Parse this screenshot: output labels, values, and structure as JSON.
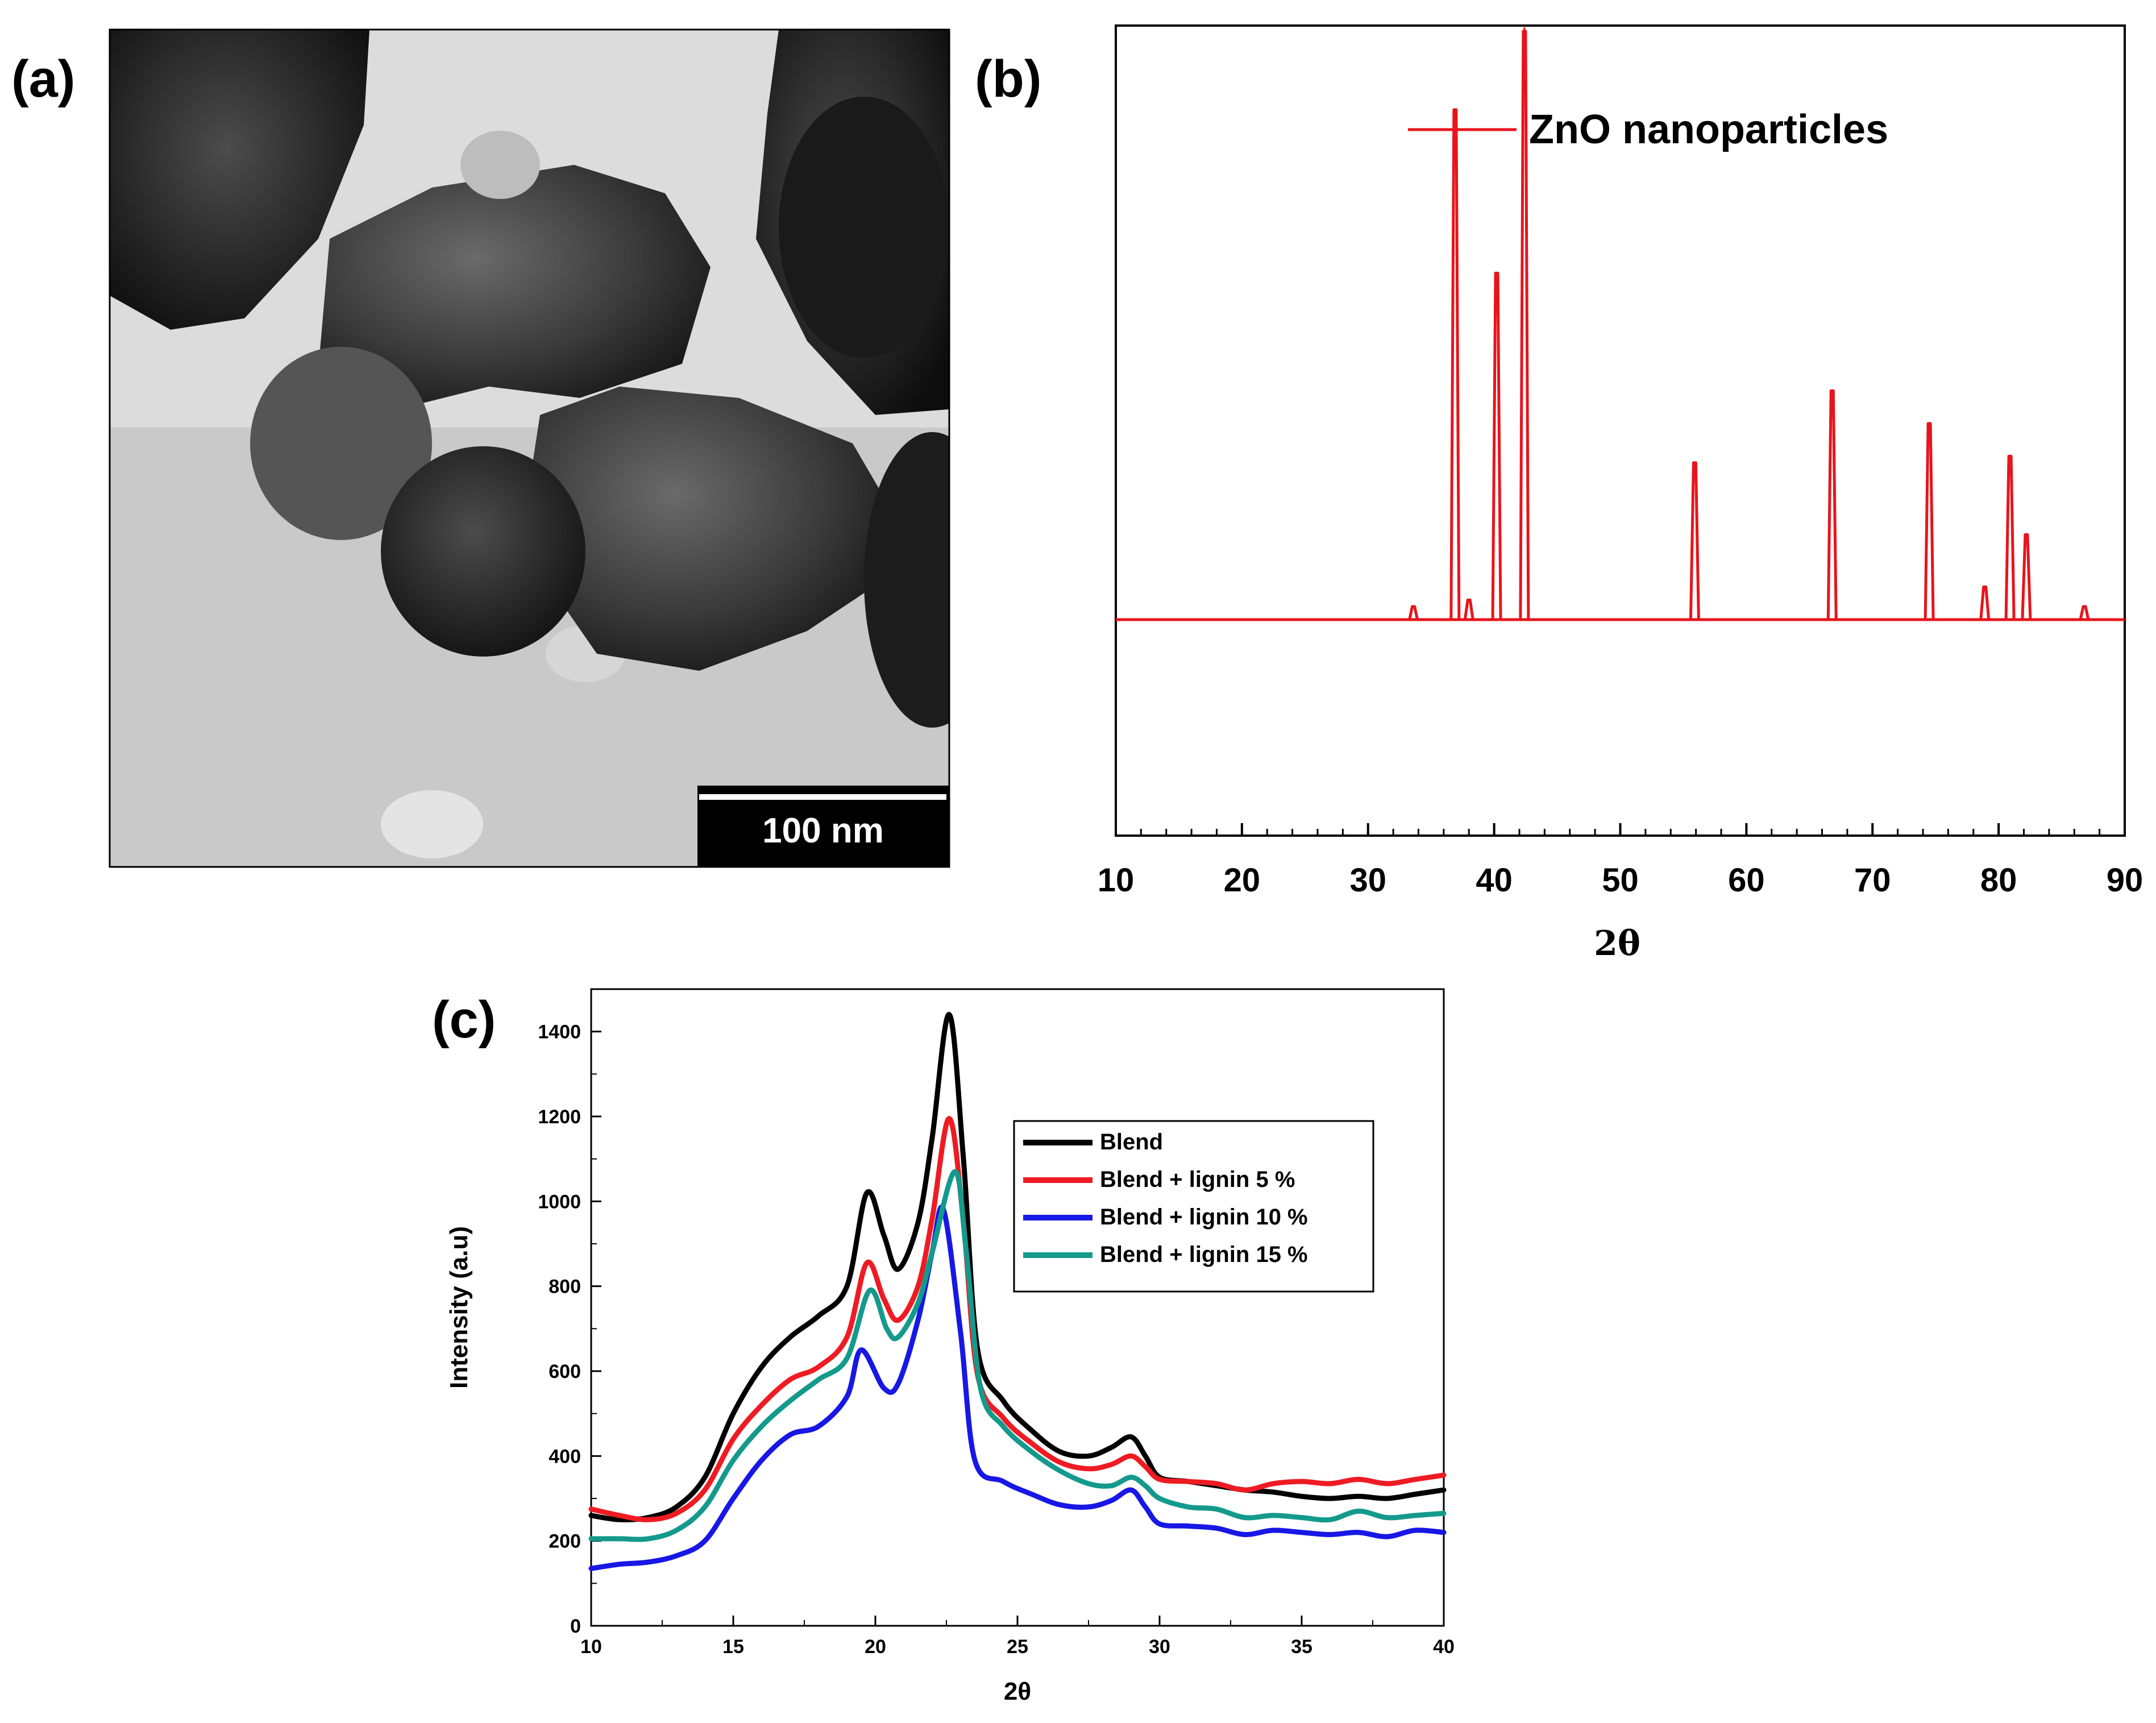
{
  "panels": {
    "a": "(a)",
    "b": "(b)",
    "c": "(c)"
  },
  "tem": {
    "scale_bar_label": "100 nm"
  },
  "chart_data": [
    {
      "panel": "b",
      "type": "line",
      "xlabel": "2θ",
      "ylabel": "",
      "xlim": [
        10,
        90
      ],
      "xticks": [
        "10",
        "20",
        "30",
        "40",
        "50",
        "60",
        "70",
        "80",
        "90"
      ],
      "legend": "ZnO nanoparticles",
      "legend_position": "top",
      "color": "#e8141b",
      "baseline": 0,
      "y_scale": "relative intensity (no y tick labels printed)",
      "peaks": [
        {
          "x": 33.6,
          "y": 2
        },
        {
          "x": 36.9,
          "y": 78
        },
        {
          "x": 38.0,
          "y": 3
        },
        {
          "x": 40.2,
          "y": 53
        },
        {
          "x": 42.4,
          "y": 90
        },
        {
          "x": 55.9,
          "y": 24
        },
        {
          "x": 66.8,
          "y": 35
        },
        {
          "x": 74.5,
          "y": 30
        },
        {
          "x": 78.9,
          "y": 5
        },
        {
          "x": 80.9,
          "y": 25
        },
        {
          "x": 82.2,
          "y": 13
        },
        {
          "x": 86.8,
          "y": 2
        }
      ]
    },
    {
      "panel": "c",
      "type": "line",
      "xlabel": "2θ",
      "ylabel": "Intensity (a.u)",
      "xlim": [
        10,
        40
      ],
      "ylim": [
        0,
        1500
      ],
      "xticks": [
        "10",
        "15",
        "20",
        "25",
        "30",
        "35",
        "40"
      ],
      "yticks": [
        "0",
        "200",
        "400",
        "600",
        "800",
        "1000",
        "1200",
        "1400"
      ],
      "legend_position": "top-right",
      "series": [
        {
          "name": "Blend",
          "color": "#000000",
          "points": [
            [
              10,
              260
            ],
            [
              11,
              250
            ],
            [
              12,
              255
            ],
            [
              13,
              280
            ],
            [
              14,
              350
            ],
            [
              15,
              500
            ],
            [
              16,
              610
            ],
            [
              17,
              680
            ],
            [
              18,
              730
            ],
            [
              19,
              800
            ],
            [
              19.7,
              1020
            ],
            [
              20.3,
              920
            ],
            [
              20.8,
              840
            ],
            [
              21.5,
              950
            ],
            [
              22,
              1150
            ],
            [
              22.6,
              1440
            ],
            [
              23.1,
              1100
            ],
            [
              23.6,
              650
            ],
            [
              24.5,
              530
            ],
            [
              25.5,
              460
            ],
            [
              26.5,
              410
            ],
            [
              27.5,
              400
            ],
            [
              28.3,
              420
            ],
            [
              29,
              445
            ],
            [
              29.5,
              400
            ],
            [
              30,
              350
            ],
            [
              31,
              340
            ],
            [
              32,
              330
            ],
            [
              33,
              320
            ],
            [
              34,
              315
            ],
            [
              35,
              305
            ],
            [
              36,
              300
            ],
            [
              37,
              305
            ],
            [
              38,
              300
            ],
            [
              39,
              310
            ],
            [
              40,
              320
            ]
          ]
        },
        {
          "name": "Blend + lignin 5 %",
          "color": "#ef1b23",
          "points": [
            [
              10,
              275
            ],
            [
              11,
              260
            ],
            [
              12,
              250
            ],
            [
              13,
              265
            ],
            [
              14,
              320
            ],
            [
              15,
              440
            ],
            [
              16,
              520
            ],
            [
              17,
              580
            ],
            [
              18,
              610
            ],
            [
              19,
              680
            ],
            [
              19.7,
              855
            ],
            [
              20.3,
              770
            ],
            [
              20.8,
              720
            ],
            [
              21.5,
              800
            ],
            [
              22,
              960
            ],
            [
              22.6,
              1195
            ],
            [
              23.1,
              950
            ],
            [
              23.6,
              590
            ],
            [
              24.5,
              490
            ],
            [
              25.5,
              430
            ],
            [
              26.5,
              385
            ],
            [
              27.5,
              370
            ],
            [
              28.3,
              380
            ],
            [
              29,
              400
            ],
            [
              29.5,
              375
            ],
            [
              30,
              345
            ],
            [
              31,
              340
            ],
            [
              32,
              335
            ],
            [
              33,
              320
            ],
            [
              34,
              335
            ],
            [
              35,
              340
            ],
            [
              36,
              335
            ],
            [
              37,
              345
            ],
            [
              38,
              335
            ],
            [
              39,
              345
            ],
            [
              40,
              355
            ]
          ]
        },
        {
          "name": "Blend + lignin 10 %",
          "color": "#1717e6",
          "points": [
            [
              10,
              135
            ],
            [
              11,
              145
            ],
            [
              12,
              150
            ],
            [
              13,
              165
            ],
            [
              14,
              200
            ],
            [
              15,
              300
            ],
            [
              16,
              390
            ],
            [
              17,
              450
            ],
            [
              18,
              470
            ],
            [
              19,
              540
            ],
            [
              19.5,
              650
            ],
            [
              20.3,
              560
            ],
            [
              20.8,
              570
            ],
            [
              21.5,
              720
            ],
            [
              22,
              880
            ],
            [
              22.4,
              980
            ],
            [
              23,
              690
            ],
            [
              23.5,
              390
            ],
            [
              24.5,
              340
            ],
            [
              25.5,
              310
            ],
            [
              26.5,
              285
            ],
            [
              27.5,
              280
            ],
            [
              28.3,
              295
            ],
            [
              29,
              320
            ],
            [
              29.5,
              280
            ],
            [
              30,
              240
            ],
            [
              31,
              235
            ],
            [
              32,
              230
            ],
            [
              33,
              215
            ],
            [
              34,
              225
            ],
            [
              35,
              220
            ],
            [
              36,
              215
            ],
            [
              37,
              220
            ],
            [
              38,
              210
            ],
            [
              39,
              225
            ],
            [
              40,
              220
            ]
          ]
        },
        {
          "name": "Blend + lignin 15 %",
          "color": "#149a8c",
          "points": [
            [
              10,
              205
            ],
            [
              11,
              205
            ],
            [
              12,
              205
            ],
            [
              13,
              225
            ],
            [
              14,
              280
            ],
            [
              15,
              390
            ],
            [
              16,
              470
            ],
            [
              17,
              530
            ],
            [
              18,
              580
            ],
            [
              19,
              630
            ],
            [
              19.8,
              790
            ],
            [
              20.4,
              700
            ],
            [
              20.8,
              680
            ],
            [
              21.5,
              760
            ],
            [
              22,
              880
            ],
            [
              22.8,
              1070
            ],
            [
              23.2,
              880
            ],
            [
              23.7,
              560
            ],
            [
              24.5,
              470
            ],
            [
              25.5,
              410
            ],
            [
              26.5,
              365
            ],
            [
              27.5,
              335
            ],
            [
              28.3,
              330
            ],
            [
              29,
              350
            ],
            [
              29.5,
              330
            ],
            [
              30,
              300
            ],
            [
              31,
              280
            ],
            [
              32,
              275
            ],
            [
              33,
              255
            ],
            [
              34,
              260
            ],
            [
              35,
              255
            ],
            [
              36,
              250
            ],
            [
              37,
              270
            ],
            [
              38,
              255
            ],
            [
              39,
              260
            ],
            [
              40,
              265
            ]
          ]
        }
      ]
    }
  ]
}
